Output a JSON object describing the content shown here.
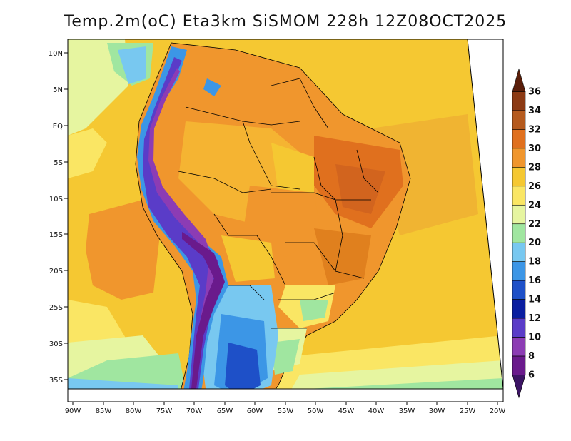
{
  "title": "Temp.2m(oC) Eta3km SiSMOM 228h 12Z08OCT2025",
  "map": {
    "lon_ticks": [
      "90W",
      "85W",
      "80W",
      "75W",
      "70W",
      "65W",
      "60W",
      "55W",
      "50W",
      "45W",
      "40W",
      "35W",
      "30W",
      "25W",
      "20W"
    ],
    "lat_ticks": [
      "10N",
      "5N",
      "EQ",
      "5S",
      "10S",
      "15S",
      "20S",
      "25S",
      "30S",
      "35S"
    ]
  },
  "colorbar": {
    "labels": [
      "36",
      "34",
      "32",
      "30",
      "28",
      "26",
      "24",
      "22",
      "20",
      "18",
      "16",
      "14",
      "12",
      "10",
      "8",
      "6"
    ],
    "colors": [
      "#5a1e0a",
      "#8c3a14",
      "#b55a1e",
      "#e0701e",
      "#f0962d",
      "#f5c832",
      "#fae664",
      "#e6f5a0",
      "#a0e6a0",
      "#78c8f0",
      "#3c96e6",
      "#1e50c8",
      "#0a1ea0",
      "#5a3cc8",
      "#8c3cb4",
      "#6a1a8c",
      "#3c1464"
    ]
  }
}
